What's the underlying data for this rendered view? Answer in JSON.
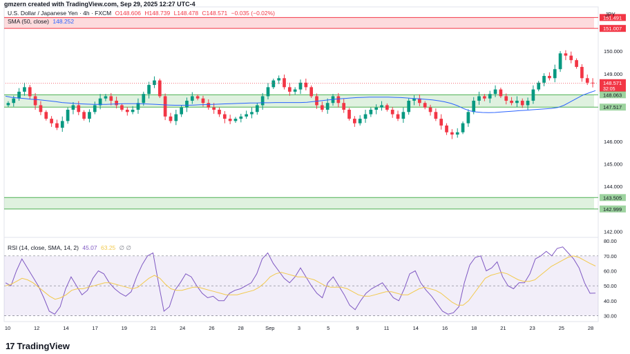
{
  "header": {
    "caption": "gmzern created with TradingView.com, Sep 29, 2025 12:27 UTC-4",
    "symbol": "U.S. Dollar / Japanese Yen · 4h · FXCM",
    "open": "O148.606",
    "high": "H148.739",
    "low": "L148.478",
    "close": "C148.571",
    "change": "−0.035 (−0.02%)",
    "sma_label": "SMA (50, close)",
    "sma_value": "148.252",
    "rsi_label": "RSI (14, close, SMA, 14, 2)",
    "rsi_value": "45.07",
    "rsi_sma_value": "63.25",
    "rsi_extra": "∅ ∅"
  },
  "brand": {
    "mark": "17",
    "name": "TradingView"
  },
  "colors": {
    "up": "#089981",
    "down": "#f23645",
    "sma": "#2962ff",
    "rsi": "#7e57c2",
    "rsi_sma": "#f2c94c",
    "zone_green": "#4caf50",
    "zone_red": "#f23645"
  },
  "chart_data": [
    {
      "type": "candlestick",
      "currency": "JPY",
      "ylim": [
        141.8,
        151.9
      ],
      "y_ticks": [
        {
          "value": 150,
          "label": "150.000"
        },
        {
          "value": 149,
          "label": "149.000"
        },
        {
          "value": 146,
          "label": "146.000"
        },
        {
          "value": 145,
          "label": "145.000"
        },
        {
          "value": 144,
          "label": "144.000"
        },
        {
          "value": 142,
          "label": "142.000"
        }
      ],
      "price_labels": [
        {
          "value": 151.491,
          "label": "151.491",
          "kind": "resistance"
        },
        {
          "value": 151.007,
          "label": "151.007",
          "kind": "resistance"
        },
        {
          "value": 148.571,
          "label": "148.571",
          "kind": "last",
          "countdown": "32:05"
        },
        {
          "value": 148.063,
          "label": "148.063",
          "kind": "support"
        },
        {
          "value": 147.517,
          "label": "147.517",
          "kind": "support"
        },
        {
          "value": 143.505,
          "label": "143.505",
          "kind": "support"
        },
        {
          "value": 142.999,
          "label": "142.999",
          "kind": "support"
        }
      ],
      "zones": [
        {
          "low": 151.007,
          "high": 151.491,
          "color": "red"
        },
        {
          "low": 147.517,
          "high": 148.063,
          "color": "green"
        },
        {
          "low": 142.999,
          "high": 143.505,
          "color": "green"
        }
      ],
      "x_labels": [
        "10",
        "12",
        "14",
        "17",
        "19",
        "21",
        "24",
        "26",
        "28",
        "Sep",
        "3",
        "5",
        "9",
        "11",
        "14",
        "16",
        "18",
        "21",
        "23",
        "25",
        "28"
      ],
      "close_series": [
        147.7,
        147.9,
        148.2,
        148.4,
        148.0,
        147.6,
        147.3,
        147.0,
        146.8,
        146.6,
        146.9,
        147.4,
        147.6,
        147.3,
        147.0,
        147.3,
        147.6,
        147.9,
        148.0,
        147.8,
        147.6,
        147.4,
        147.3,
        147.4,
        147.7,
        148.1,
        148.5,
        148.7,
        148.0,
        147.1,
        146.9,
        147.2,
        147.5,
        147.8,
        148.0,
        147.9,
        147.7,
        147.5,
        147.4,
        147.2,
        147.0,
        146.9,
        147.0,
        147.1,
        147.2,
        147.3,
        147.6,
        148.0,
        148.4,
        148.7,
        148.8,
        148.4,
        148.2,
        148.3,
        148.6,
        148.4,
        148.0,
        147.6,
        147.4,
        147.7,
        148.0,
        147.7,
        147.4,
        147.0,
        146.8,
        147.0,
        147.2,
        147.4,
        147.5,
        147.6,
        147.4,
        147.2,
        147.0,
        147.3,
        147.8,
        147.9,
        147.7,
        147.5,
        147.3,
        147.0,
        146.7,
        146.4,
        146.3,
        146.4,
        146.8,
        147.3,
        147.8,
        148.0,
        147.9,
        148.1,
        148.3,
        148.0,
        147.8,
        147.7,
        147.8,
        147.6,
        147.8,
        148.3,
        148.6,
        148.9,
        148.8,
        149.2,
        149.9,
        149.8,
        149.6,
        149.3,
        148.8,
        148.6,
        148.57
      ],
      "sma_series": [
        148.0,
        147.95,
        147.92,
        147.9,
        147.87,
        147.85,
        147.82,
        147.79,
        147.76,
        147.72,
        147.7,
        147.68,
        147.66,
        147.65,
        147.64,
        147.64,
        147.64,
        147.65,
        147.66,
        147.67,
        147.67,
        147.67,
        147.66,
        147.65,
        147.64,
        147.62,
        147.61,
        147.6,
        147.6,
        147.6,
        147.61,
        147.62,
        147.63,
        147.64,
        147.65,
        147.66,
        147.67,
        147.68,
        147.69,
        147.7,
        147.7,
        147.71,
        147.71,
        147.72,
        147.72,
        147.72,
        147.72,
        147.72,
        147.73,
        147.76,
        147.79,
        147.82,
        147.85,
        147.88,
        147.9,
        147.92,
        147.94,
        147.95,
        147.96,
        147.96,
        147.96,
        147.96,
        147.95,
        147.94,
        147.92,
        147.9,
        147.88,
        147.86,
        147.84,
        147.8,
        147.75,
        147.68,
        147.58,
        147.45,
        147.35,
        147.3,
        147.28,
        147.27,
        147.28,
        147.3,
        147.32,
        147.34,
        147.36,
        147.38,
        147.4,
        147.42,
        147.44,
        147.46,
        147.5,
        147.6,
        147.75,
        147.9,
        148.05,
        148.15,
        148.25
      ]
    },
    {
      "type": "line",
      "title": "RSI (14, close, SMA, 14, 2)",
      "ylim": [
        27,
        81
      ],
      "y_ticks": [
        80,
        70,
        60,
        50,
        40,
        30
      ],
      "y_tick_labels": [
        "80.00",
        "70.00",
        "60.00",
        "50.00",
        "40.00",
        "30.00"
      ],
      "band": {
        "low": 30,
        "high": 70
      },
      "mid": 50,
      "series": [
        {
          "name": "RSI",
          "values": [
            52,
            50,
            60,
            68,
            62,
            56,
            50,
            42,
            33,
            31,
            36,
            48,
            56,
            50,
            44,
            47,
            55,
            60,
            58,
            52,
            48,
            45,
            43,
            46,
            56,
            64,
            70,
            72,
            52,
            33,
            36,
            47,
            52,
            58,
            56,
            50,
            45,
            42,
            43,
            40,
            40,
            45,
            47,
            48,
            50,
            52,
            58,
            68,
            72,
            65,
            60,
            55,
            52,
            56,
            62,
            56,
            50,
            45,
            42,
            52,
            56,
            50,
            44,
            37,
            34,
            40,
            45,
            48,
            50,
            52,
            47,
            42,
            40,
            48,
            58,
            60,
            52,
            47,
            43,
            38,
            33,
            31,
            32,
            36,
            52,
            64,
            69,
            70,
            60,
            62,
            66,
            56,
            50,
            48,
            52,
            52,
            58,
            68,
            70,
            73,
            70,
            75,
            76,
            72,
            68,
            62,
            52,
            45,
            45.07
          ]
        },
        {
          "name": "SMA",
          "values": [
            50,
            51,
            53,
            55,
            54,
            52,
            49,
            46,
            43,
            41,
            42,
            44,
            47,
            48,
            48,
            49,
            50,
            51,
            52,
            52,
            51,
            50,
            49,
            48,
            49,
            52,
            55,
            57,
            55,
            51,
            48,
            47,
            47,
            48,
            49,
            49,
            48,
            47,
            46,
            45,
            44,
            44,
            44,
            45,
            46,
            47,
            49,
            52,
            56,
            58,
            59,
            58,
            57,
            56,
            56,
            55,
            54,
            52,
            50,
            49,
            49,
            49,
            48,
            46,
            44,
            43,
            43,
            44,
            45,
            46,
            46,
            45,
            44,
            44,
            46,
            48,
            49,
            48,
            47,
            45,
            42,
            39,
            37,
            37,
            40,
            45,
            50,
            55,
            57,
            58,
            59,
            58,
            56,
            54,
            53,
            53,
            54,
            57,
            60,
            63,
            65,
            67,
            69,
            70,
            69,
            67,
            65,
            63.25
          ]
        }
      ]
    }
  ]
}
